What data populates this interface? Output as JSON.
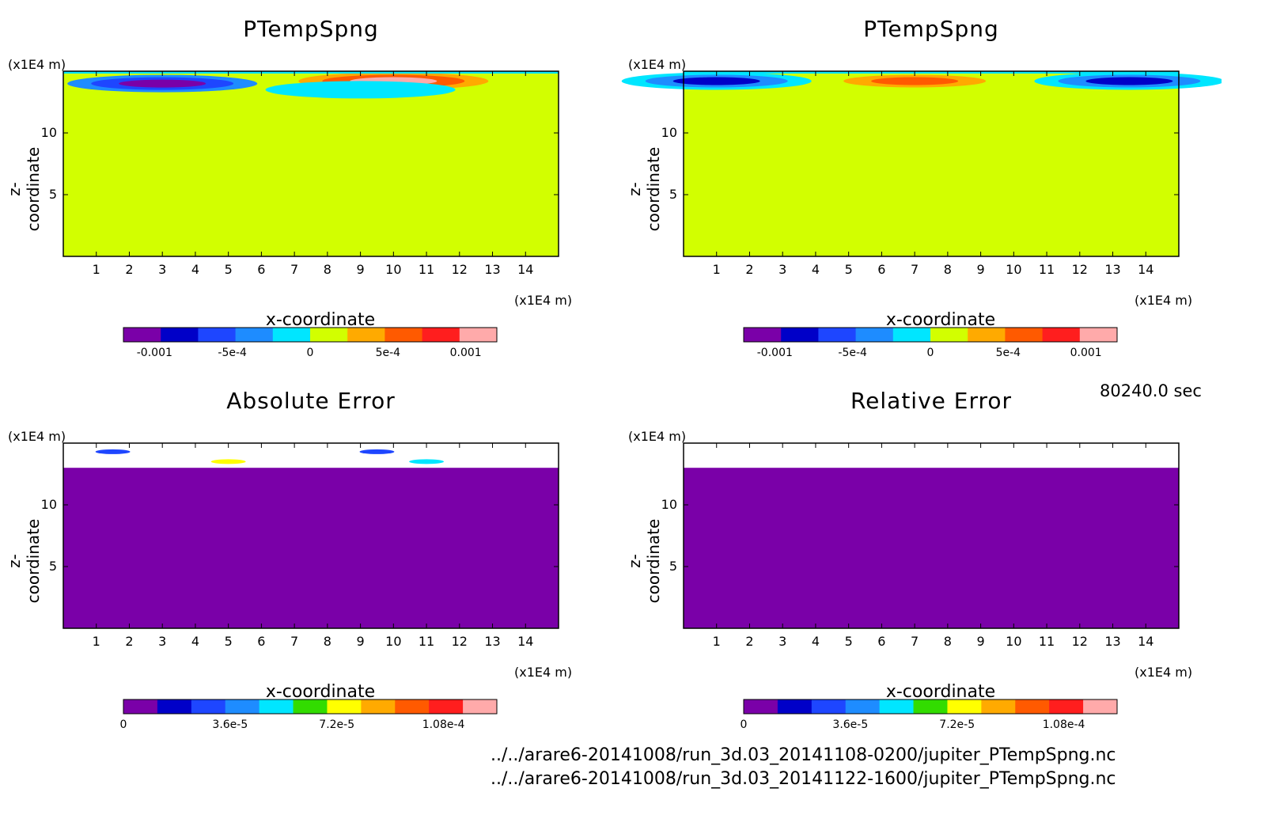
{
  "time_label": "80240.0 sec",
  "file_paths": [
    "../../arare6-20141008/run_3d.03_20141108-0200/jupiter_PTempSpng.nc",
    "../../arare6-20141008/run_3d.03_20141122-1600/jupiter_PTempSpng.nc"
  ],
  "colors": {
    "scale1": [
      "#7a00a8",
      "#0000c8",
      "#1e46ff",
      "#1e8cff",
      "#00e6ff",
      "#d2ff00",
      "#ffaa00",
      "#ff5a00",
      "#ff1e1e",
      "#ffaaaa"
    ],
    "scale2": [
      "#7a00a8",
      "#0000c8",
      "#1e46ff",
      "#1e8cff",
      "#00e6ff",
      "#32dc00",
      "#ffff00",
      "#ffaa00",
      "#ff5a00",
      "#ff1e1e",
      "#ffaaaa"
    ],
    "background": "#d2ff00",
    "error_fill": "#7a00a8"
  },
  "chart_data": [
    {
      "type": "heatmap",
      "title": "PTempSpng",
      "xlabel": "x-coordinate",
      "ylabel": "z-coordinate",
      "x_unit": "(x1E4 m)",
      "z_unit": "(x1E4 m)",
      "x_ticks": [
        "1",
        "2",
        "3",
        "4",
        "5",
        "6",
        "7",
        "8",
        "9",
        "10",
        "11",
        "12",
        "13",
        "14"
      ],
      "z_ticks": [
        "5",
        "10"
      ],
      "xlim": [
        0,
        15
      ],
      "zlim": [
        0,
        15
      ],
      "colorbar_labels": [
        "-0.001",
        "-5e-4",
        "0",
        "5e-4",
        "0.001"
      ],
      "colorbar_range": [
        -0.0012,
        0.0012
      ],
      "features": [
        {
          "x": 3.0,
          "z": 14.0,
          "value": -0.0011
        },
        {
          "x": 10.0,
          "z": 14.2,
          "value": 0.0011
        },
        {
          "x": 9.0,
          "z": 13.5,
          "value": -0.0002
        }
      ]
    },
    {
      "type": "heatmap",
      "title": "PTempSpng",
      "xlabel": "x-coordinate",
      "ylabel": "z-coordinate",
      "x_unit": "(x1E4 m)",
      "z_unit": "(x1E4 m)",
      "x_ticks": [
        "1",
        "2",
        "3",
        "4",
        "5",
        "6",
        "7",
        "8",
        "9",
        "10",
        "11",
        "12",
        "13",
        "14"
      ],
      "z_ticks": [
        "5",
        "10"
      ],
      "xlim": [
        0,
        15
      ],
      "zlim": [
        0,
        15
      ],
      "colorbar_labels": [
        "-0.001",
        "-5e-4",
        "0",
        "5e-4",
        "0.001"
      ],
      "colorbar_range": [
        -0.0012,
        0.0012
      ],
      "features": [
        {
          "x": 1.0,
          "z": 14.2,
          "value": -0.0008
        },
        {
          "x": 7.0,
          "z": 14.2,
          "value": 0.0006
        },
        {
          "x": 13.5,
          "z": 14.2,
          "value": -0.0008
        }
      ]
    },
    {
      "type": "heatmap",
      "title": "Absolute Error",
      "xlabel": "x-coordinate",
      "ylabel": "z-coordinate",
      "x_unit": "(x1E4 m)",
      "z_unit": "(x1E4 m)",
      "x_ticks": [
        "1",
        "2",
        "3",
        "4",
        "5",
        "6",
        "7",
        "8",
        "9",
        "10",
        "11",
        "12",
        "13",
        "14"
      ],
      "z_ticks": [
        "5",
        "10"
      ],
      "xlim": [
        0,
        15
      ],
      "zlim": [
        0,
        15
      ],
      "colorbar_labels": [
        "0",
        "3.6e-5",
        "7.2e-5",
        "1.08e-4"
      ],
      "colorbar_range": [
        0,
        0.000126
      ],
      "data_top_z": 13.0
    },
    {
      "type": "heatmap",
      "title": "Relative Error",
      "xlabel": "x-coordinate",
      "ylabel": "z-coordinate",
      "x_unit": "(x1E4 m)",
      "z_unit": "(x1E4 m)",
      "x_ticks": [
        "1",
        "2",
        "3",
        "4",
        "5",
        "6",
        "7",
        "8",
        "9",
        "10",
        "11",
        "12",
        "13",
        "14"
      ],
      "z_ticks": [
        "5",
        "10"
      ],
      "xlim": [
        0,
        15
      ],
      "zlim": [
        0,
        15
      ],
      "colorbar_labels": [
        "0",
        "3.6e-5",
        "7.2e-5",
        "1.08e-4"
      ],
      "colorbar_range": [
        0,
        0.000126
      ],
      "data_top_z": 13.0
    }
  ]
}
